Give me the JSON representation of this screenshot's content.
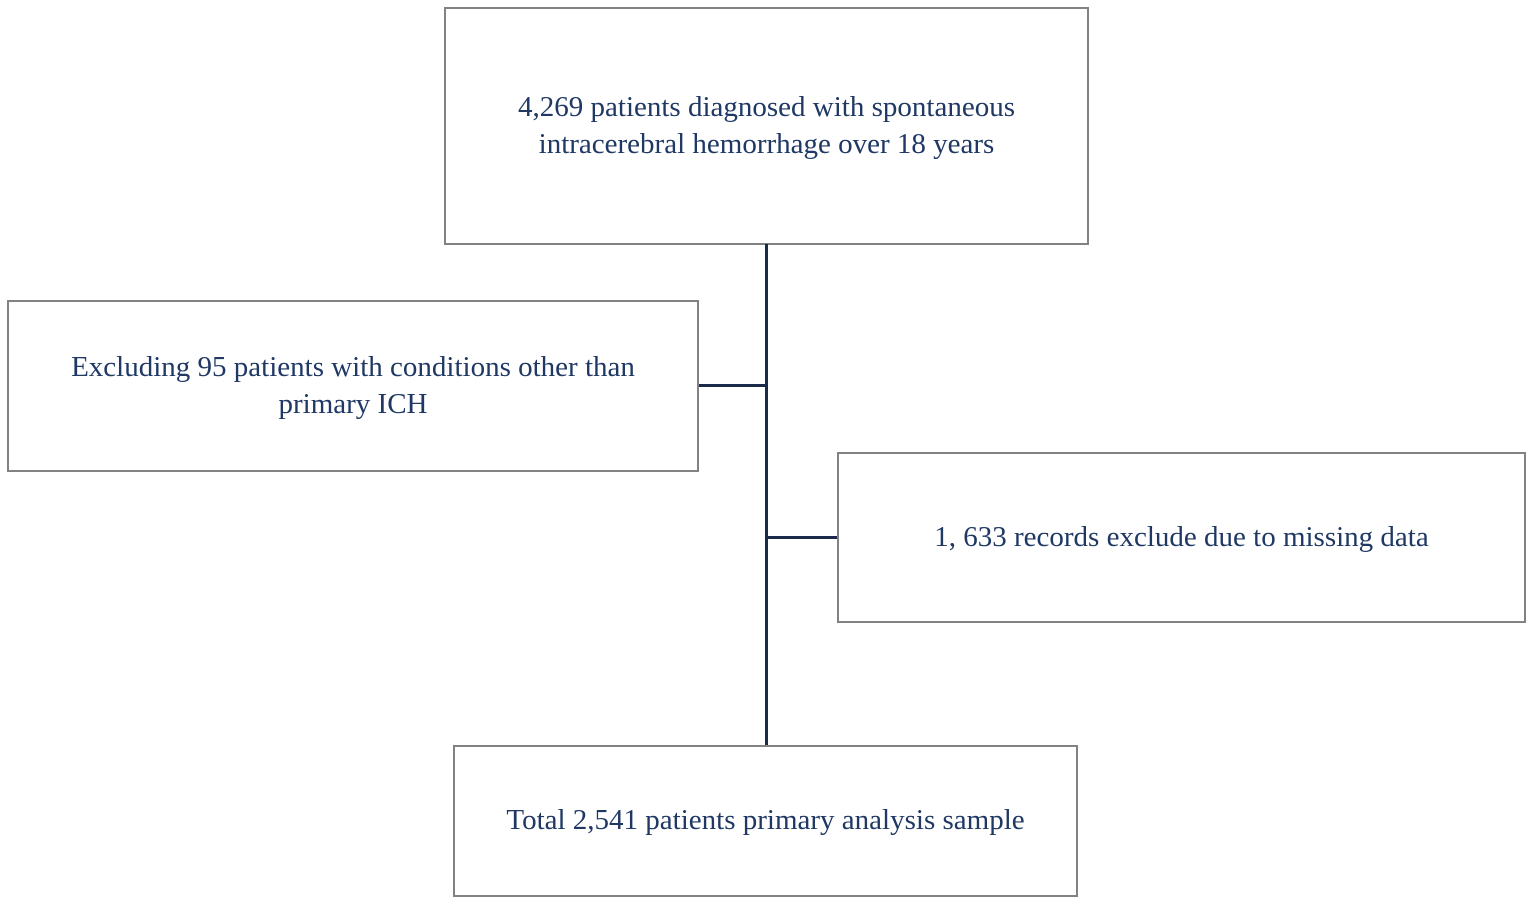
{
  "diagram": {
    "type": "flowchart",
    "nodes": [
      {
        "id": "enrollment",
        "text": "4,269 patients diagnosed with spontaneous intracerebral hemorrhage over 18 years"
      },
      {
        "id": "exclusion-conditions",
        "text": "Excluding 95 patients with conditions other than primary ICH"
      },
      {
        "id": "exclusion-missing-data",
        "text": "1, 633 records exclude due to missing data"
      },
      {
        "id": "final-sample",
        "text": "Total 2,541 patients primary analysis sample"
      }
    ],
    "counts": {
      "diagnosed": "4,269",
      "excluded_conditions": "95",
      "excluded_missing": "1, 633",
      "final_sample": "2,541"
    },
    "colors": {
      "text": "#1f3864",
      "connector_line": "#1c2a4a",
      "box_border": "#828282",
      "background": "#ffffff"
    }
  }
}
